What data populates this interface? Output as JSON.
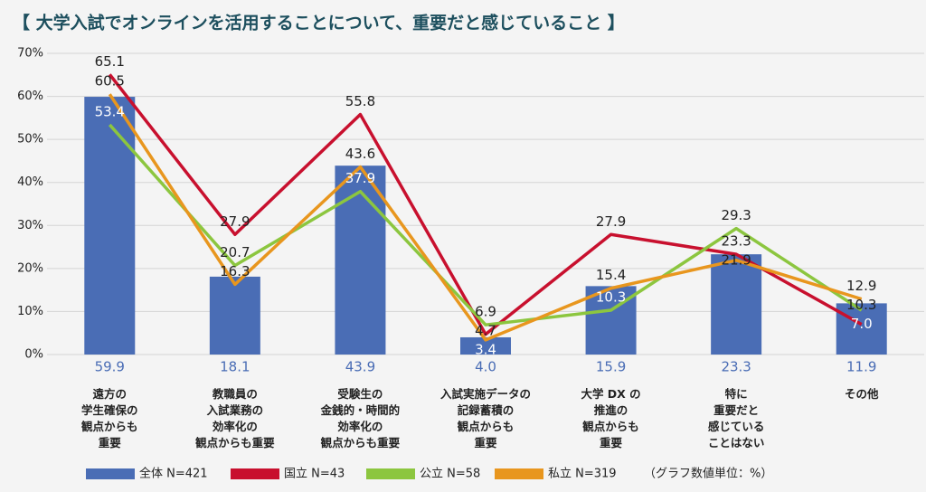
{
  "chart_data": {
    "type": "bar-line",
    "title": "【 大学入試でオンラインを活用することについて、重要だと感じていること 】",
    "note": "（グラフ数値単位：%）",
    "categories": [
      "遠方の\n学生確保の\n観点からも\n重要",
      "教職員の\n入試業務の\n効率化の\n観点からも重要",
      "受験生の\n金銭的・時間的\n効率化の\n観点からも重要",
      "入試実施データの\n記録蓄積の\n観点からも\n重要",
      "大学 DX の\n推進の\n観点からも\n重要",
      "特に\n重要だと\n感じている\nことはない",
      "その他"
    ],
    "ylim": [
      0,
      70
    ],
    "yticks": [
      {
        "value": 0,
        "label": "0%"
      },
      {
        "value": 10,
        "label": "10%"
      },
      {
        "value": 20,
        "label": "20%"
      },
      {
        "value": 30,
        "label": "30%"
      },
      {
        "value": 40,
        "label": "40%"
      },
      {
        "value": 50,
        "label": "50%"
      },
      {
        "value": 60,
        "label": "60%"
      },
      {
        "value": 70,
        "label": "70%"
      }
    ],
    "grid": true,
    "series": [
      {
        "name": "全体 N=421",
        "kind": "bar",
        "color": "#4a6db5",
        "values": [
          59.9,
          18.1,
          43.9,
          4.0,
          15.9,
          23.3,
          11.9
        ],
        "value_labels": [
          "59.9",
          "18.1",
          "43.9",
          "4.0",
          "15.9",
          "23.3",
          "11.9"
        ]
      },
      {
        "name": "国立 N=43",
        "kind": "line",
        "color": "#c8102e",
        "values": [
          65.1,
          27.9,
          55.8,
          4.7,
          27.9,
          23.3,
          7.0
        ],
        "value_labels": [
          "65.1",
          "27.9",
          "55.8",
          "4.7",
          "27.9",
          "23.3",
          "7.0"
        ]
      },
      {
        "name": "公立 N=58",
        "kind": "line",
        "color": "#8cc63f",
        "values": [
          53.4,
          20.7,
          37.9,
          6.9,
          10.3,
          29.3,
          10.3
        ],
        "value_labels": [
          "53.4",
          "20.7",
          "37.9",
          "6.9",
          "10.3",
          "29.3",
          "10.3"
        ]
      },
      {
        "name": "私立 N=319",
        "kind": "line",
        "color": "#e8961e",
        "values": [
          60.5,
          16.3,
          43.6,
          3.4,
          15.4,
          21.9,
          12.9
        ],
        "value_labels": [
          "60.5",
          "16.3",
          "43.6",
          "3.4",
          "15.4",
          "21.9",
          "12.9"
        ]
      }
    ]
  }
}
